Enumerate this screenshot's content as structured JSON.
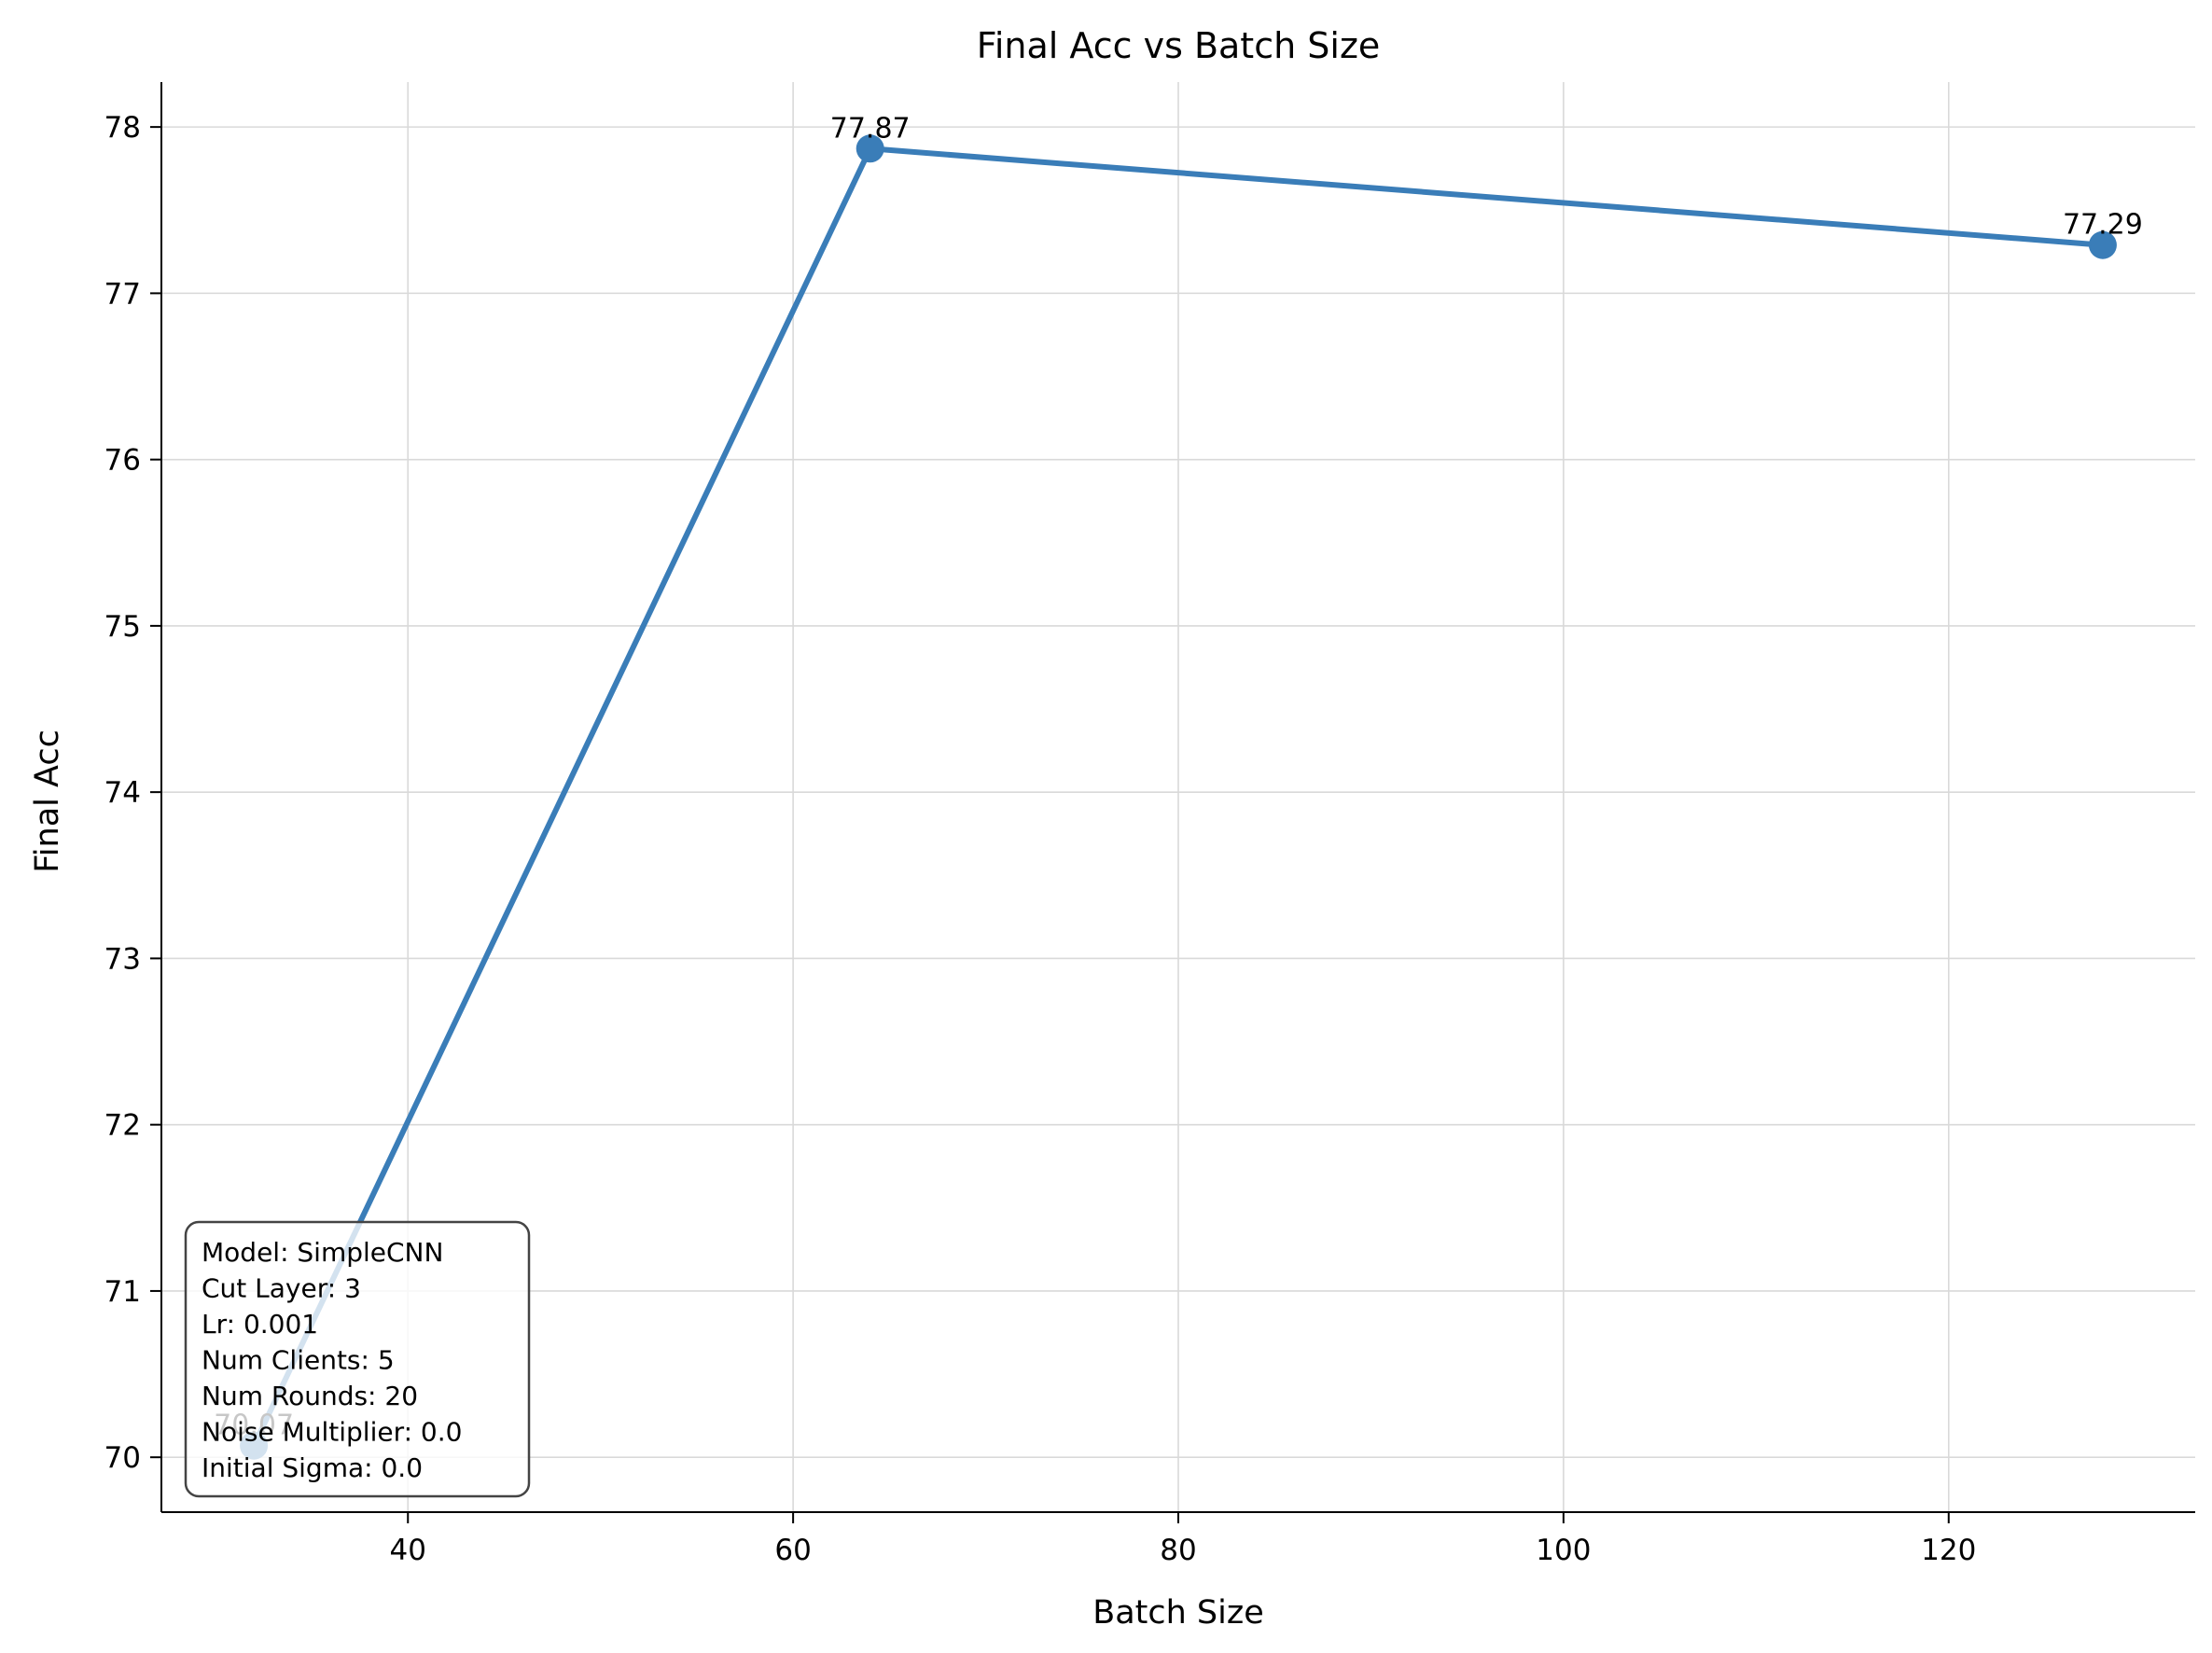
{
  "chart_data": {
    "type": "line",
    "title": "Final Acc vs Batch Size",
    "xlabel": "Batch Size",
    "ylabel": "Final Acc",
    "x": [
      32,
      64,
      128
    ],
    "series": [
      {
        "name": "",
        "values": [
          70.07,
          77.87,
          77.29
        ],
        "labels": [
          "70.07",
          "77.87",
          "77.29"
        ]
      }
    ],
    "xlim": [
      27.2,
      132.8
    ],
    "ylim": [
      69.67,
      78.27
    ],
    "xticks": [
      40,
      60,
      80,
      100,
      120
    ],
    "yticks": [
      70,
      71,
      72,
      73,
      74,
      75,
      76,
      77,
      78
    ],
    "grid": true,
    "color": "#3a7db8",
    "info_box": [
      "Model: SimpleCNN",
      "Cut Layer: 3",
      "Lr: 0.001",
      "Num Clients: 5",
      "Num Rounds: 20",
      "Noise Multiplier: 0.0",
      "Initial Sigma: 0.0"
    ],
    "info_box_placement": "bottom-left"
  }
}
